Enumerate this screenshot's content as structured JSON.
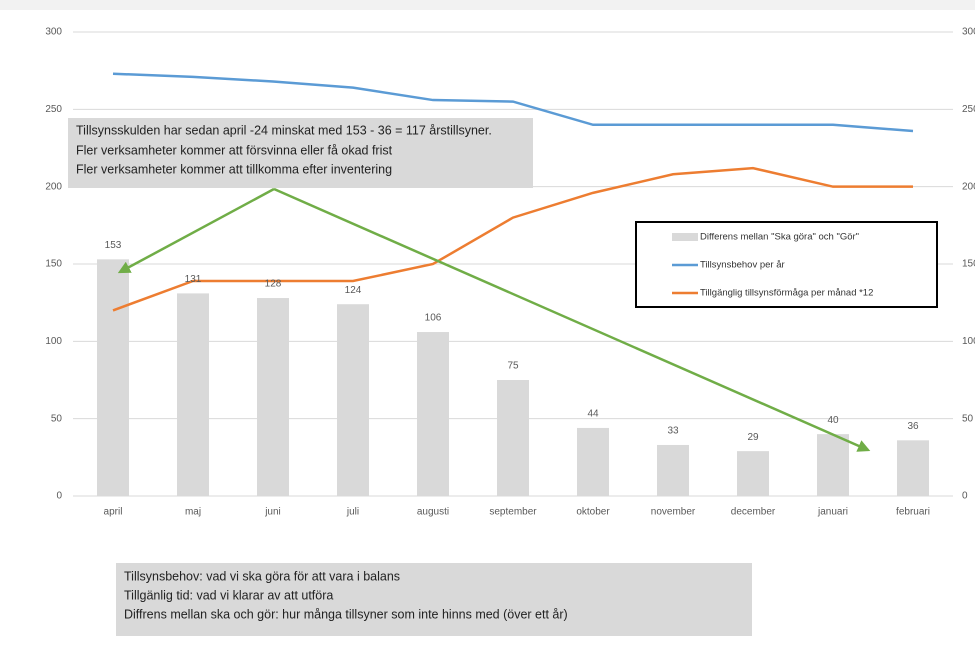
{
  "chart_data": {
    "type": "bar",
    "categories": [
      "april",
      "maj",
      "juni",
      "juli",
      "augusti",
      "september",
      "oktober",
      "november",
      "december",
      "januari",
      "februari"
    ],
    "series": [
      {
        "name": "Differens mellan \"Ska göra\" och \"Gör\"",
        "type": "bar",
        "color": "#d9d9d9",
        "values": [
          153,
          131,
          128,
          124,
          106,
          75,
          44,
          33,
          29,
          40,
          36
        ]
      },
      {
        "name": "Tillsynsbehov per år",
        "type": "line",
        "color": "#5b9bd5",
        "values": [
          273,
          271,
          268,
          264,
          256,
          255,
          240,
          240,
          240,
          240,
          236
        ]
      },
      {
        "name": "Tillgänglig tillsynsförmåga per månad *12",
        "type": "line",
        "color": "#ed7d31",
        "values": [
          120,
          139,
          139,
          139,
          150,
          180,
          196,
          208,
          212,
          200,
          200
        ]
      }
    ],
    "ylim": [
      0,
      300
    ],
    "yticks": [
      0,
      50,
      100,
      150,
      200,
      250,
      300
    ],
    "y2lim": [
      0,
      300
    ],
    "y2ticks": [
      0,
      50,
      100,
      150,
      200,
      250,
      300
    ],
    "grid": true,
    "legend": "right",
    "annotations": [
      [
        "Tillsynsskulden har sedan april -24 minskat med  153 - 36 = 117 årstillsyner.",
        "Fler verksamheter kommer att försvinna eller få okad frist",
        "Fler verksamheter kommer att tillkomma efter inventering"
      ],
      [
        "Tillsynsbehov: vad vi ska göra för att vara i balans",
        "Tillgänlig tid: vad vi klarar av att utföra",
        "Diffrens  mellan ska och gör: hur många tillsyner som inte hinns med (över ett år)"
      ]
    ]
  }
}
